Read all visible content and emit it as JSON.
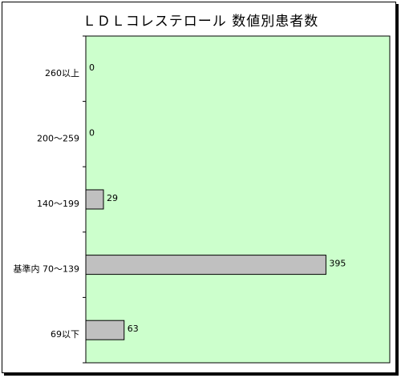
{
  "chart_data": {
    "type": "bar",
    "orientation": "horizontal",
    "title": "ＬＤＬコレステロール 数値別患者数",
    "xlabel": "",
    "ylabel": "",
    "categories": [
      "260以上",
      "200～259",
      "140～199",
      "基準内 70～139",
      "69以下"
    ],
    "values": [
      0,
      0,
      29,
      395,
      63
    ],
    "xlim": [
      0,
      500
    ],
    "grid": false,
    "legend": "none",
    "colors": {
      "plot_background": "#ccffcc",
      "bar_fill": "#c0c0c0",
      "bar_stroke": "#000000"
    }
  }
}
